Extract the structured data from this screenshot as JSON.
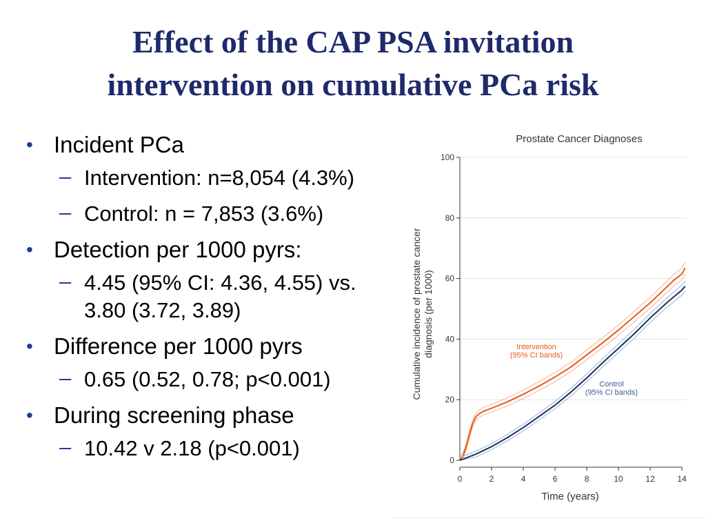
{
  "slide": {
    "title_line1": "Effect of the CAP PSA invitation",
    "title_line2": "intervention on cumulative PCa risk"
  },
  "bullets": [
    {
      "text": "Incident PCa",
      "subs": [
        "Intervention: n=8,054 (4.3%)",
        "Control: n = 7,853 (3.6%)"
      ]
    },
    {
      "text": "Detection per 1000 pyrs:",
      "subs": [
        "4.45 (95% CI: 4.36, 4.55) vs.",
        "3.80 (3.72, 3.89)"
      ]
    },
    {
      "text": "Difference per 1000 pyrs",
      "subs": [
        "0.65 (0.52, 0.78; p<0.001)"
      ]
    },
    {
      "text": "During screening phase",
      "subs": [
        "10.42 v 2.18  (p<0.001)"
      ]
    }
  ],
  "colors": {
    "title": "#1f2a6b",
    "bullet": "#1f3d8f",
    "intervention": "#e8591a",
    "intervention_band": "#f5b08a",
    "control": "#1f2f55",
    "control_band": "#8fb3e0"
  },
  "chart_data": {
    "type": "line",
    "title": "Prostate Cancer Diagnoses",
    "xlabel": "Time (years)",
    "ylabel_line1": "Cumulative incidence of prostate cancer",
    "ylabel_line2": "diagnosis (per 1000)",
    "xlim": [
      0,
      14.3
    ],
    "ylim": [
      0,
      100
    ],
    "xticks": [
      0,
      2,
      4,
      6,
      8,
      10,
      12,
      14
    ],
    "yticks": [
      0,
      20,
      40,
      60,
      80,
      100
    ],
    "series": [
      {
        "name": "Intervention",
        "label_line1": "Intervention",
        "label_line2": "(95% CI bands)",
        "x": [
          0,
          0.2,
          0.4,
          0.6,
          0.8,
          1.0,
          1.2,
          1.5,
          2,
          3,
          4,
          5,
          6,
          7,
          8,
          9,
          10,
          11,
          12,
          13,
          13.5,
          14,
          14.2
        ],
        "values": [
          0,
          1.5,
          4.5,
          8.5,
          12,
          14.3,
          15.3,
          16.2,
          17.2,
          19.3,
          21.8,
          24.5,
          27.5,
          30.8,
          34.8,
          38.8,
          43.0,
          47.5,
          52.0,
          57.0,
          59.5,
          61.5,
          63.5
        ]
      },
      {
        "name": "Control",
        "label_line1": "Control",
        "label_line2": "(95% CI bands)",
        "x": [
          0,
          1,
          2,
          3,
          4,
          5,
          6,
          7,
          8,
          9,
          10,
          11,
          12,
          13,
          13.5,
          14,
          14.2
        ],
        "values": [
          0,
          2,
          4.5,
          7.5,
          10.8,
          14.5,
          18.2,
          22.5,
          27.2,
          32.2,
          37.0,
          41.8,
          47.0,
          51.8,
          54.0,
          56.2,
          57.5
        ]
      }
    ]
  }
}
